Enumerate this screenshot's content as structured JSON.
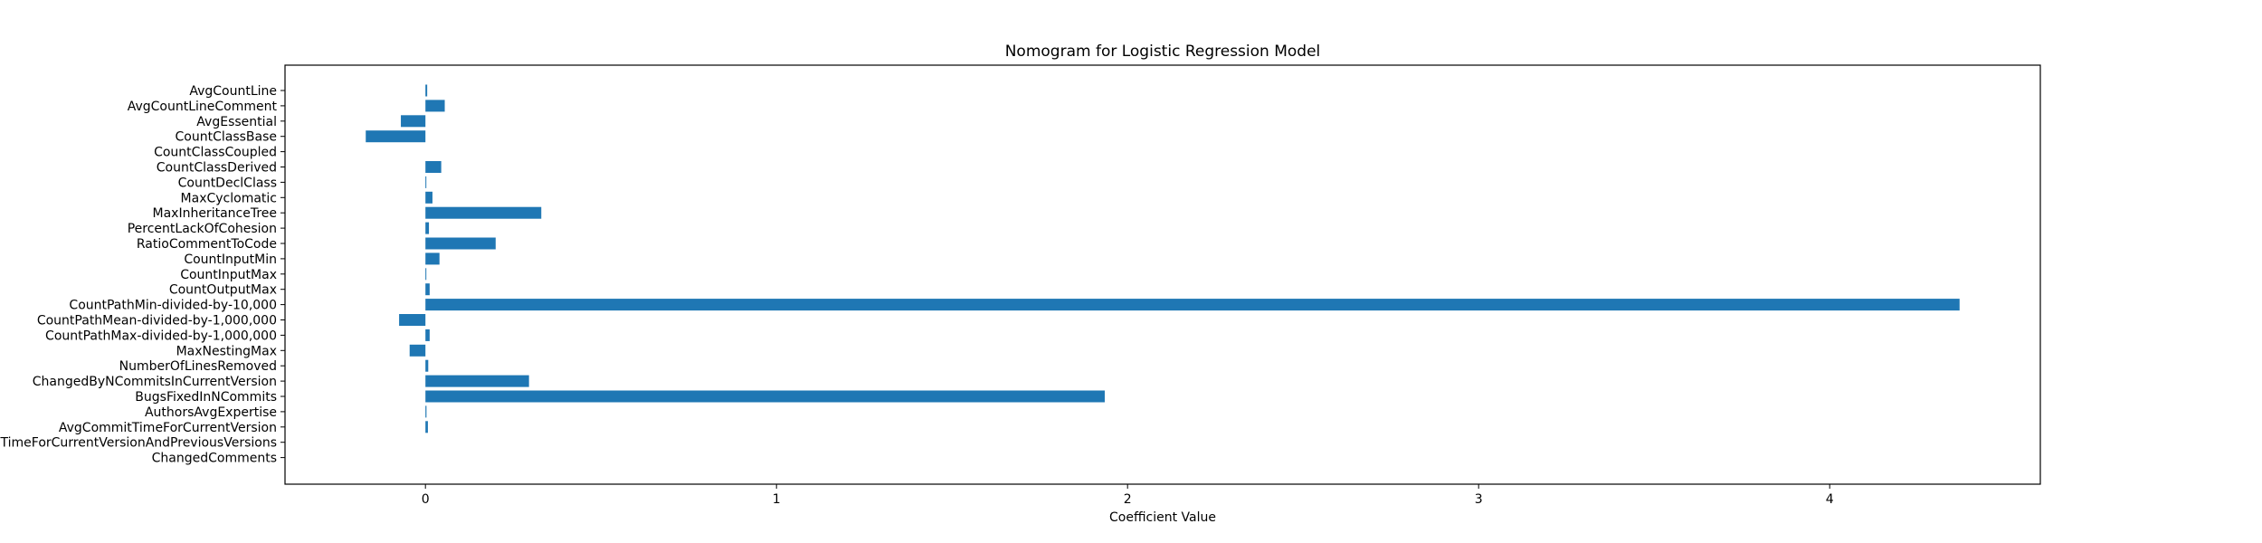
{
  "chart_data": {
    "type": "bar",
    "orientation": "horizontal",
    "title": "Nomogram for Logistic Regression Model",
    "xlabel": "Coefficient Value",
    "ylabel": "",
    "xlim": [
      -0.4,
      4.6
    ],
    "xticks": [
      0,
      1,
      2,
      3,
      4
    ],
    "grid": false,
    "legend": "none",
    "bar_color": "#1f77b4",
    "categories": [
      "AvgCountLine",
      "AvgCountLineComment",
      "AvgEssential",
      "CountClassBase",
      "CountClassCoupled",
      "CountClassDerived",
      "CountDeclClass",
      "MaxCyclomatic",
      "MaxInheritanceTree",
      "PercentLackOfCohesion",
      "RatioCommentToCode",
      "CountInputMin",
      "CountInputMax",
      "CountOutputMax",
      "CountPathMin-divided-by-10,000",
      "CountPathMean-divided-by-1,000,000",
      "CountPathMax-divided-by-1,000,000",
      "MaxNestingMax",
      "NumberOfLinesRemoved",
      "ChangedByNCommitsInCurrentVersion",
      "BugsFixedInNCommits",
      "AuthorsAvgExpertise",
      "AvgCommitTimeForCurrentVersion",
      "TimeForCurrentVersionAndPreviousVersions",
      "ChangedComments"
    ],
    "values": [
      0.005,
      0.055,
      -0.07,
      -0.17,
      0.0,
      0.045,
      0.002,
      0.02,
      0.33,
      0.01,
      0.2,
      0.04,
      0.002,
      0.012,
      4.37,
      -0.075,
      0.012,
      -0.045,
      0.008,
      0.295,
      1.935,
      0.003,
      0.007,
      0.0,
      0.0
    ]
  }
}
